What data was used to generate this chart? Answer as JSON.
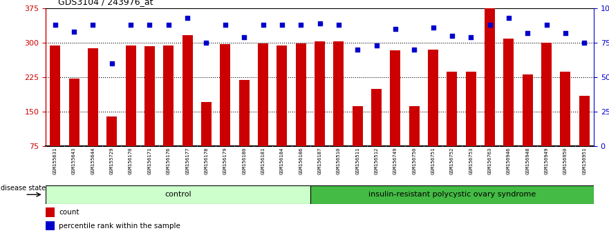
{
  "title": "GDS3104 / 243976_at",
  "samples": [
    "GSM155631",
    "GSM155643",
    "GSM155644",
    "GSM155729",
    "GSM156170",
    "GSM156171",
    "GSM156176",
    "GSM156177",
    "GSM156178",
    "GSM156179",
    "GSM156180",
    "GSM156181",
    "GSM156184",
    "GSM156186",
    "GSM156187",
    "GSM156510",
    "GSM156511",
    "GSM156512",
    "GSM156749",
    "GSM156750",
    "GSM156751",
    "GSM156752",
    "GSM156753",
    "GSM156763",
    "GSM156946",
    "GSM156948",
    "GSM156949",
    "GSM156950",
    "GSM156951"
  ],
  "bar_values": [
    295,
    222,
    289,
    140,
    294,
    293,
    295,
    317,
    172,
    297,
    220,
    299,
    294,
    299,
    304,
    304,
    162,
    200,
    284,
    163,
    285,
    238,
    238,
    375,
    310,
    232,
    300,
    237,
    185
  ],
  "pct_values": [
    88,
    83,
    88,
    60,
    88,
    88,
    88,
    93,
    75,
    88,
    79,
    88,
    88,
    88,
    89,
    88,
    70,
    73,
    85,
    70,
    86,
    80,
    79,
    88,
    93,
    82,
    88,
    82,
    75
  ],
  "control_count": 14,
  "disease_label": "insulin-resistant polycystic ovary syndrome",
  "control_label": "control",
  "bar_color": "#cc0000",
  "dot_color": "#0000cc",
  "ylim_left": [
    75,
    375
  ],
  "ylim_right": [
    0,
    100
  ],
  "yticks_left": [
    75,
    150,
    225,
    300,
    375
  ],
  "yticks_right": [
    0,
    25,
    50,
    75,
    100
  ],
  "bg_color": "#ffffff",
  "plot_bg": "#ffffff",
  "control_bg": "#ccffcc",
  "disease_bg": "#44bb44",
  "label_count": "count",
  "label_pct": "percentile rank within the sample",
  "bar_width": 0.55,
  "grid_lines": [
    150,
    225,
    300
  ]
}
